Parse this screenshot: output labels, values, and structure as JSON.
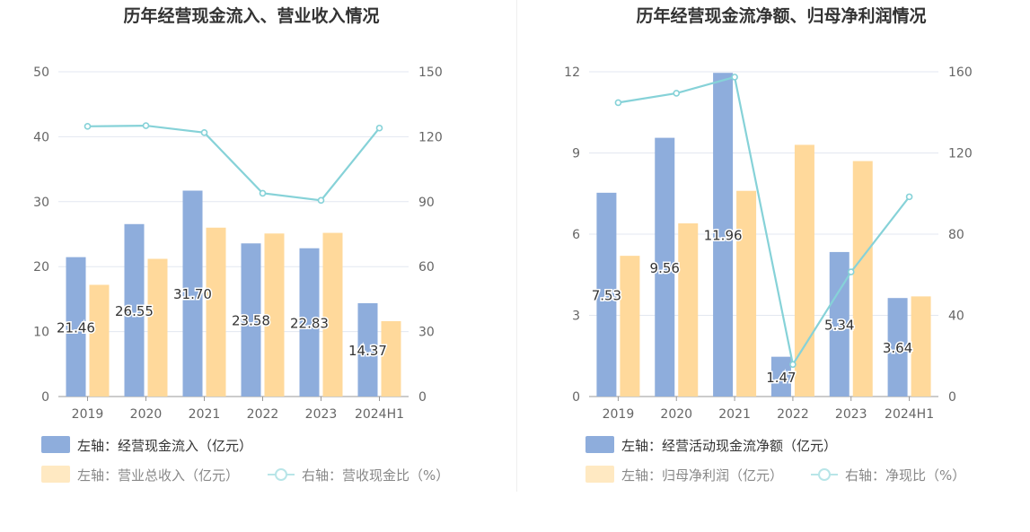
{
  "chart_data": [
    {
      "type": "bar",
      "title": "历年经营现金流入、营业收入情况",
      "categories": [
        "2019",
        "2020",
        "2021",
        "2022",
        "2023",
        "2024H1"
      ],
      "left_axis": {
        "min": 0,
        "max": 50,
        "ticks": [
          "0",
          "10",
          "20",
          "30",
          "40",
          "50"
        ]
      },
      "right_axis": {
        "min": 0,
        "max": 150,
        "ticks": [
          "0",
          "30",
          "60",
          "90",
          "120",
          "150"
        ]
      },
      "series": [
        {
          "name": "左轴：经营现金流入（亿元）",
          "kind": "bar",
          "axis": "left",
          "color": "#8eaddc",
          "values": [
            21.46,
            26.55,
            31.7,
            23.58,
            22.83,
            14.37
          ],
          "show_labels": true
        },
        {
          "name": "左轴：营业总收入（亿元）",
          "kind": "bar",
          "axis": "left",
          "color": "#ffd99b",
          "values": [
            17.2,
            21.2,
            26.0,
            25.1,
            25.2,
            11.6
          ],
          "show_labels": false
        },
        {
          "name": "右轴：营收现金比（%）",
          "kind": "line",
          "axis": "right",
          "color": "#86d2d8",
          "values": [
            124.8,
            125.1,
            121.9,
            93.9,
            90.6,
            124.0
          ],
          "show_labels": false
        }
      ]
    },
    {
      "type": "bar",
      "title": "历年经营现金流净额、归母净利润情况",
      "categories": [
        "2019",
        "2020",
        "2021",
        "2022",
        "2023",
        "2024H1"
      ],
      "left_axis": {
        "min": 0,
        "max": 12,
        "ticks": [
          "0",
          "3",
          "6",
          "9",
          "12"
        ]
      },
      "right_axis": {
        "min": 0,
        "max": 160,
        "ticks": [
          "0",
          "40",
          "80",
          "120",
          "160"
        ]
      },
      "series": [
        {
          "name": "左轴：经营活动现金流净额（亿元）",
          "kind": "bar",
          "axis": "left",
          "color": "#8eaddc",
          "values": [
            7.53,
            9.56,
            11.96,
            1.47,
            5.34,
            3.64
          ],
          "show_labels": true
        },
        {
          "name": "左轴：归母净利润（亿元）",
          "kind": "bar",
          "axis": "left",
          "color": "#ffd99b",
          "values": [
            5.2,
            6.4,
            7.6,
            9.3,
            8.7,
            3.7
          ],
          "show_labels": false
        },
        {
          "name": "右轴：净现比（%）",
          "kind": "line",
          "axis": "right",
          "color": "#86d2d8",
          "values": [
            144.8,
            149.4,
            157.4,
            15.8,
            61.4,
            98.4
          ],
          "show_labels": false
        }
      ]
    }
  ]
}
